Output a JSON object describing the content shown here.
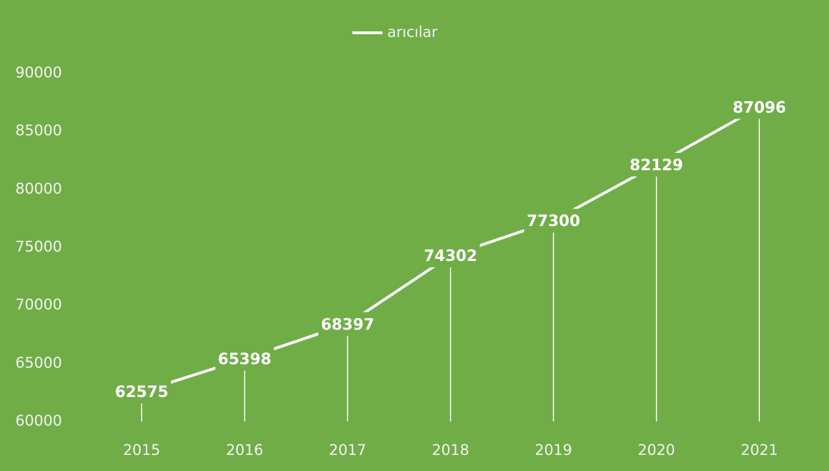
{
  "chart_data": {
    "type": "line",
    "categories": [
      "2015",
      "2016",
      "2017",
      "2018",
      "2019",
      "2020",
      "2021"
    ],
    "series": [
      {
        "name": "arıcılar",
        "color": "#ffffff",
        "values": [
          62575,
          65398,
          68397,
          74302,
          77300,
          82129,
          87096
        ]
      }
    ],
    "ylim": [
      60000,
      90000
    ],
    "yticks": [
      60000,
      65000,
      70000,
      75000,
      80000,
      85000,
      90000
    ],
    "grid": false,
    "drop_lines": true,
    "data_labels": true,
    "legend": "top",
    "background": "#70ad47"
  }
}
